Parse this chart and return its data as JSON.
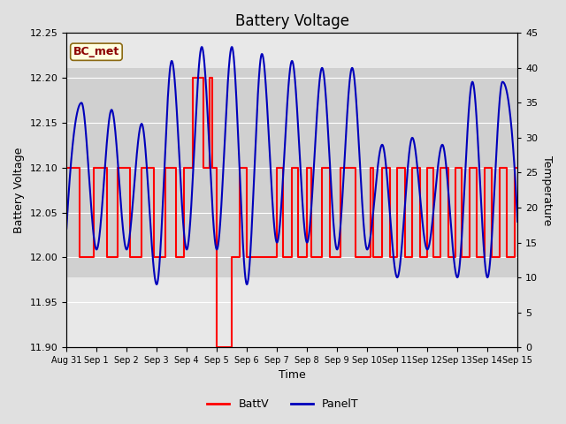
{
  "title": "Battery Voltage",
  "xlabel": "Time",
  "ylabel_left": "Battery Voltage",
  "ylabel_right": "Temperature",
  "annotation": "BC_met",
  "ylim_left": [
    11.9,
    12.25
  ],
  "ylim_right": [
    0,
    45
  ],
  "yticks_left": [
    11.9,
    11.95,
    12.0,
    12.05,
    12.1,
    12.15,
    12.2,
    12.25
  ],
  "yticks_right": [
    0,
    5,
    10,
    15,
    20,
    25,
    30,
    35,
    40,
    45
  ],
  "xtick_labels": [
    "Aug 31",
    "Sep 1",
    "Sep 2",
    "Sep 3",
    "Sep 4",
    "Sep 5",
    "Sep 6",
    "Sep 7",
    "Sep 8",
    "Sep 9",
    "Sep 10",
    "Sep 11",
    "Sep 12",
    "Sep 13",
    "Sep 14",
    "Sep 15"
  ],
  "batt_color": "#FF0000",
  "panel_color": "#0000BB",
  "fig_bg_color": "#E0E0E0",
  "plot_bg_color": "#E8E8E8",
  "band_color": "#D0D0D0",
  "legend_batt": "BattV",
  "legend_panel": "PanelT",
  "title_fontsize": 12,
  "axis_label_fontsize": 9,
  "tick_fontsize": 8,
  "band_low_temp": 10,
  "band_high_temp": 40
}
